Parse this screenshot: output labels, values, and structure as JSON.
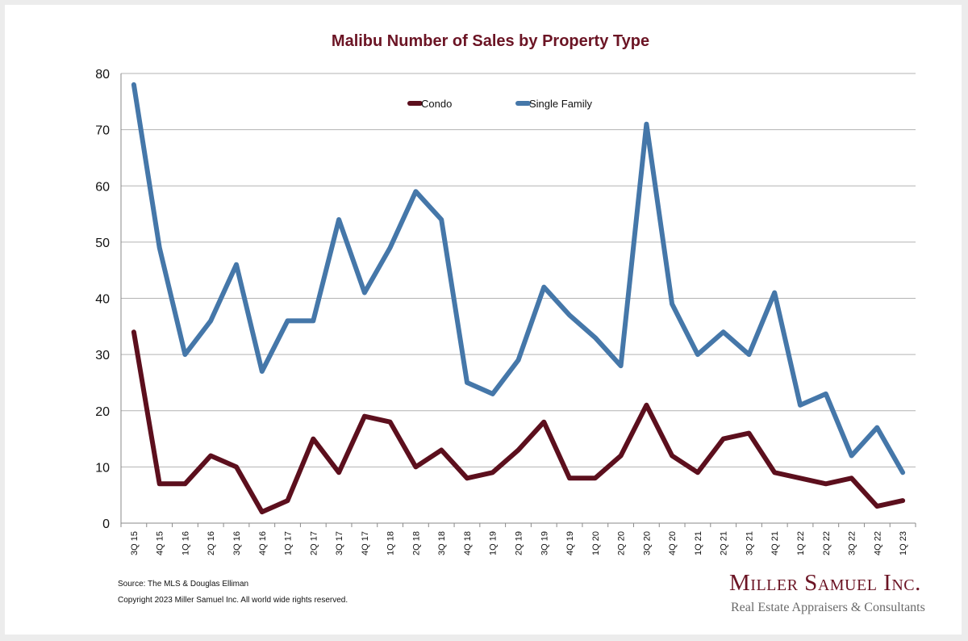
{
  "chart_data": {
    "type": "line",
    "title": "Malibu Number of Sales by Property Type",
    "xlabel": "",
    "ylabel": "",
    "ylim": [
      0,
      80
    ],
    "yticks": [
      0,
      10,
      20,
      30,
      40,
      50,
      60,
      70,
      80
    ],
    "grid": true,
    "legend_position": "top-center",
    "categories": [
      "3Q 15",
      "4Q 15",
      "1Q 16",
      "2Q 16",
      "3Q 16",
      "4Q 16",
      "1Q 17",
      "2Q 17",
      "3Q 17",
      "4Q 17",
      "1Q 18",
      "2Q 18",
      "3Q 18",
      "4Q 18",
      "1Q 19",
      "2Q 19",
      "3Q 19",
      "4Q 19",
      "1Q 20",
      "2Q 20",
      "3Q 20",
      "4Q 20",
      "1Q 21",
      "2Q 21",
      "3Q 21",
      "4Q 21",
      "1Q 22",
      "2Q 22",
      "3Q 22",
      "4Q 22",
      "1Q 23"
    ],
    "series": [
      {
        "name": "Condo",
        "color": "#5c0f1d",
        "values": [
          34,
          7,
          7,
          12,
          10,
          2,
          4,
          15,
          9,
          19,
          18,
          10,
          13,
          8,
          9,
          13,
          18,
          8,
          8,
          12,
          21,
          12,
          9,
          15,
          16,
          9,
          8,
          7,
          8,
          3,
          4
        ]
      },
      {
        "name": "Single Family",
        "color": "#4577a9",
        "values": [
          78,
          49,
          30,
          36,
          46,
          27,
          36,
          36,
          54,
          41,
          49,
          59,
          54,
          25,
          23,
          29,
          42,
          37,
          33,
          28,
          71,
          39,
          30,
          34,
          30,
          41,
          21,
          23,
          12,
          17,
          9
        ]
      }
    ]
  },
  "footer": {
    "source": "Source: The MLS & Douglas Elliman",
    "copyright": "Copyright 2023 Miller Samuel Inc.  All world wide rights reserved."
  },
  "logo": {
    "name": "Miller Samuel Inc.",
    "tagline": "Real Estate Appraisers & Consultants"
  }
}
